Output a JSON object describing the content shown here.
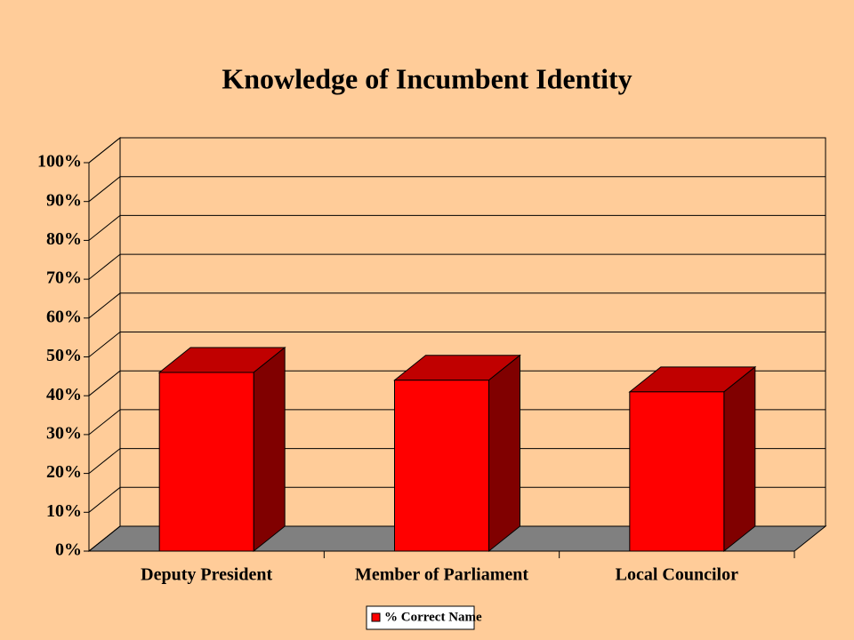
{
  "chart_data": {
    "type": "bar3d",
    "title": "Knowledge of Incumbent Identity",
    "categories": [
      "Deputy President",
      "Member of Parliament",
      "Local Councilor"
    ],
    "series": [
      {
        "name": "% Correct Name",
        "color": "#ff0000",
        "values": [
          46,
          44,
          41
        ]
      }
    ],
    "ylim": [
      0,
      100
    ],
    "yticks": [
      {
        "value": 0,
        "label": "0%"
      },
      {
        "value": 10,
        "label": "10%"
      },
      {
        "value": 20,
        "label": "20%"
      },
      {
        "value": 30,
        "label": "30%"
      },
      {
        "value": 40,
        "label": "40%"
      },
      {
        "value": 50,
        "label": "50%"
      },
      {
        "value": 60,
        "label": "60%"
      },
      {
        "value": 70,
        "label": "70%"
      },
      {
        "value": 80,
        "label": "80%"
      },
      {
        "value": 90,
        "label": "90%"
      },
      {
        "value": 100,
        "label": "100%"
      }
    ],
    "grid": true
  }
}
